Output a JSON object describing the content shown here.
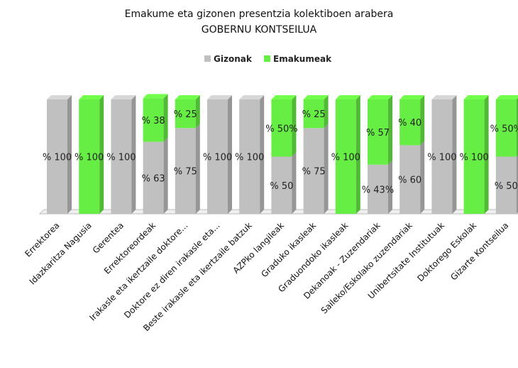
{
  "chart_data": {
    "type": "bar",
    "stacked": true,
    "percent_stacked": true,
    "style": "3d-columns",
    "title": "Emakume eta gizonen presentzia kolektiboen arabera",
    "subtitle": "GOBERNU KONTSEILUA",
    "legend_position": "top",
    "grid": false,
    "ylim": [
      0,
      100
    ],
    "categories": [
      "Errektorea",
      "Idazkaritza Nagusia",
      "Gerentea",
      "Errektoreordeak",
      "Irakasle eta ikertzaile doktore...",
      "Doktore ez diren irakasle eta...",
      "Beste irakasle eta ikertzaile batzuk",
      "AZPko langileak",
      "Graduko ikasleak",
      "Graduondoko ikasleak",
      "Dekanoak - Zuzendariak",
      "Saileko/Eskolako zuzendariak",
      "Unibertsitate Institutuak",
      "Doktorego Eskolak",
      "Gizarte Kontseilua"
    ],
    "series": [
      {
        "name": "Gizonak",
        "color": "#c0c0c0",
        "values": [
          100,
          0,
          100,
          63,
          75,
          100,
          100,
          50,
          75,
          0,
          43,
          60,
          100,
          0,
          50
        ],
        "labels": [
          "% 100",
          "",
          "% 100",
          "% 63",
          "% 75",
          "% 100",
          "% 100",
          "% 50",
          "% 75",
          "",
          "% 43%",
          "% 60",
          "% 100",
          "",
          "% 50"
        ]
      },
      {
        "name": "Emakumeak",
        "color": "#66ee44",
        "values": [
          0,
          100,
          0,
          38,
          25,
          0,
          0,
          50,
          25,
          100,
          57,
          40,
          0,
          100,
          50
        ],
        "labels": [
          "",
          "% 100",
          "",
          "% 38",
          "% 25",
          "",
          "",
          "% 50%",
          "% 25",
          "% 100",
          "% 57",
          "% 40",
          "",
          "% 100",
          "% 50%"
        ]
      }
    ]
  }
}
